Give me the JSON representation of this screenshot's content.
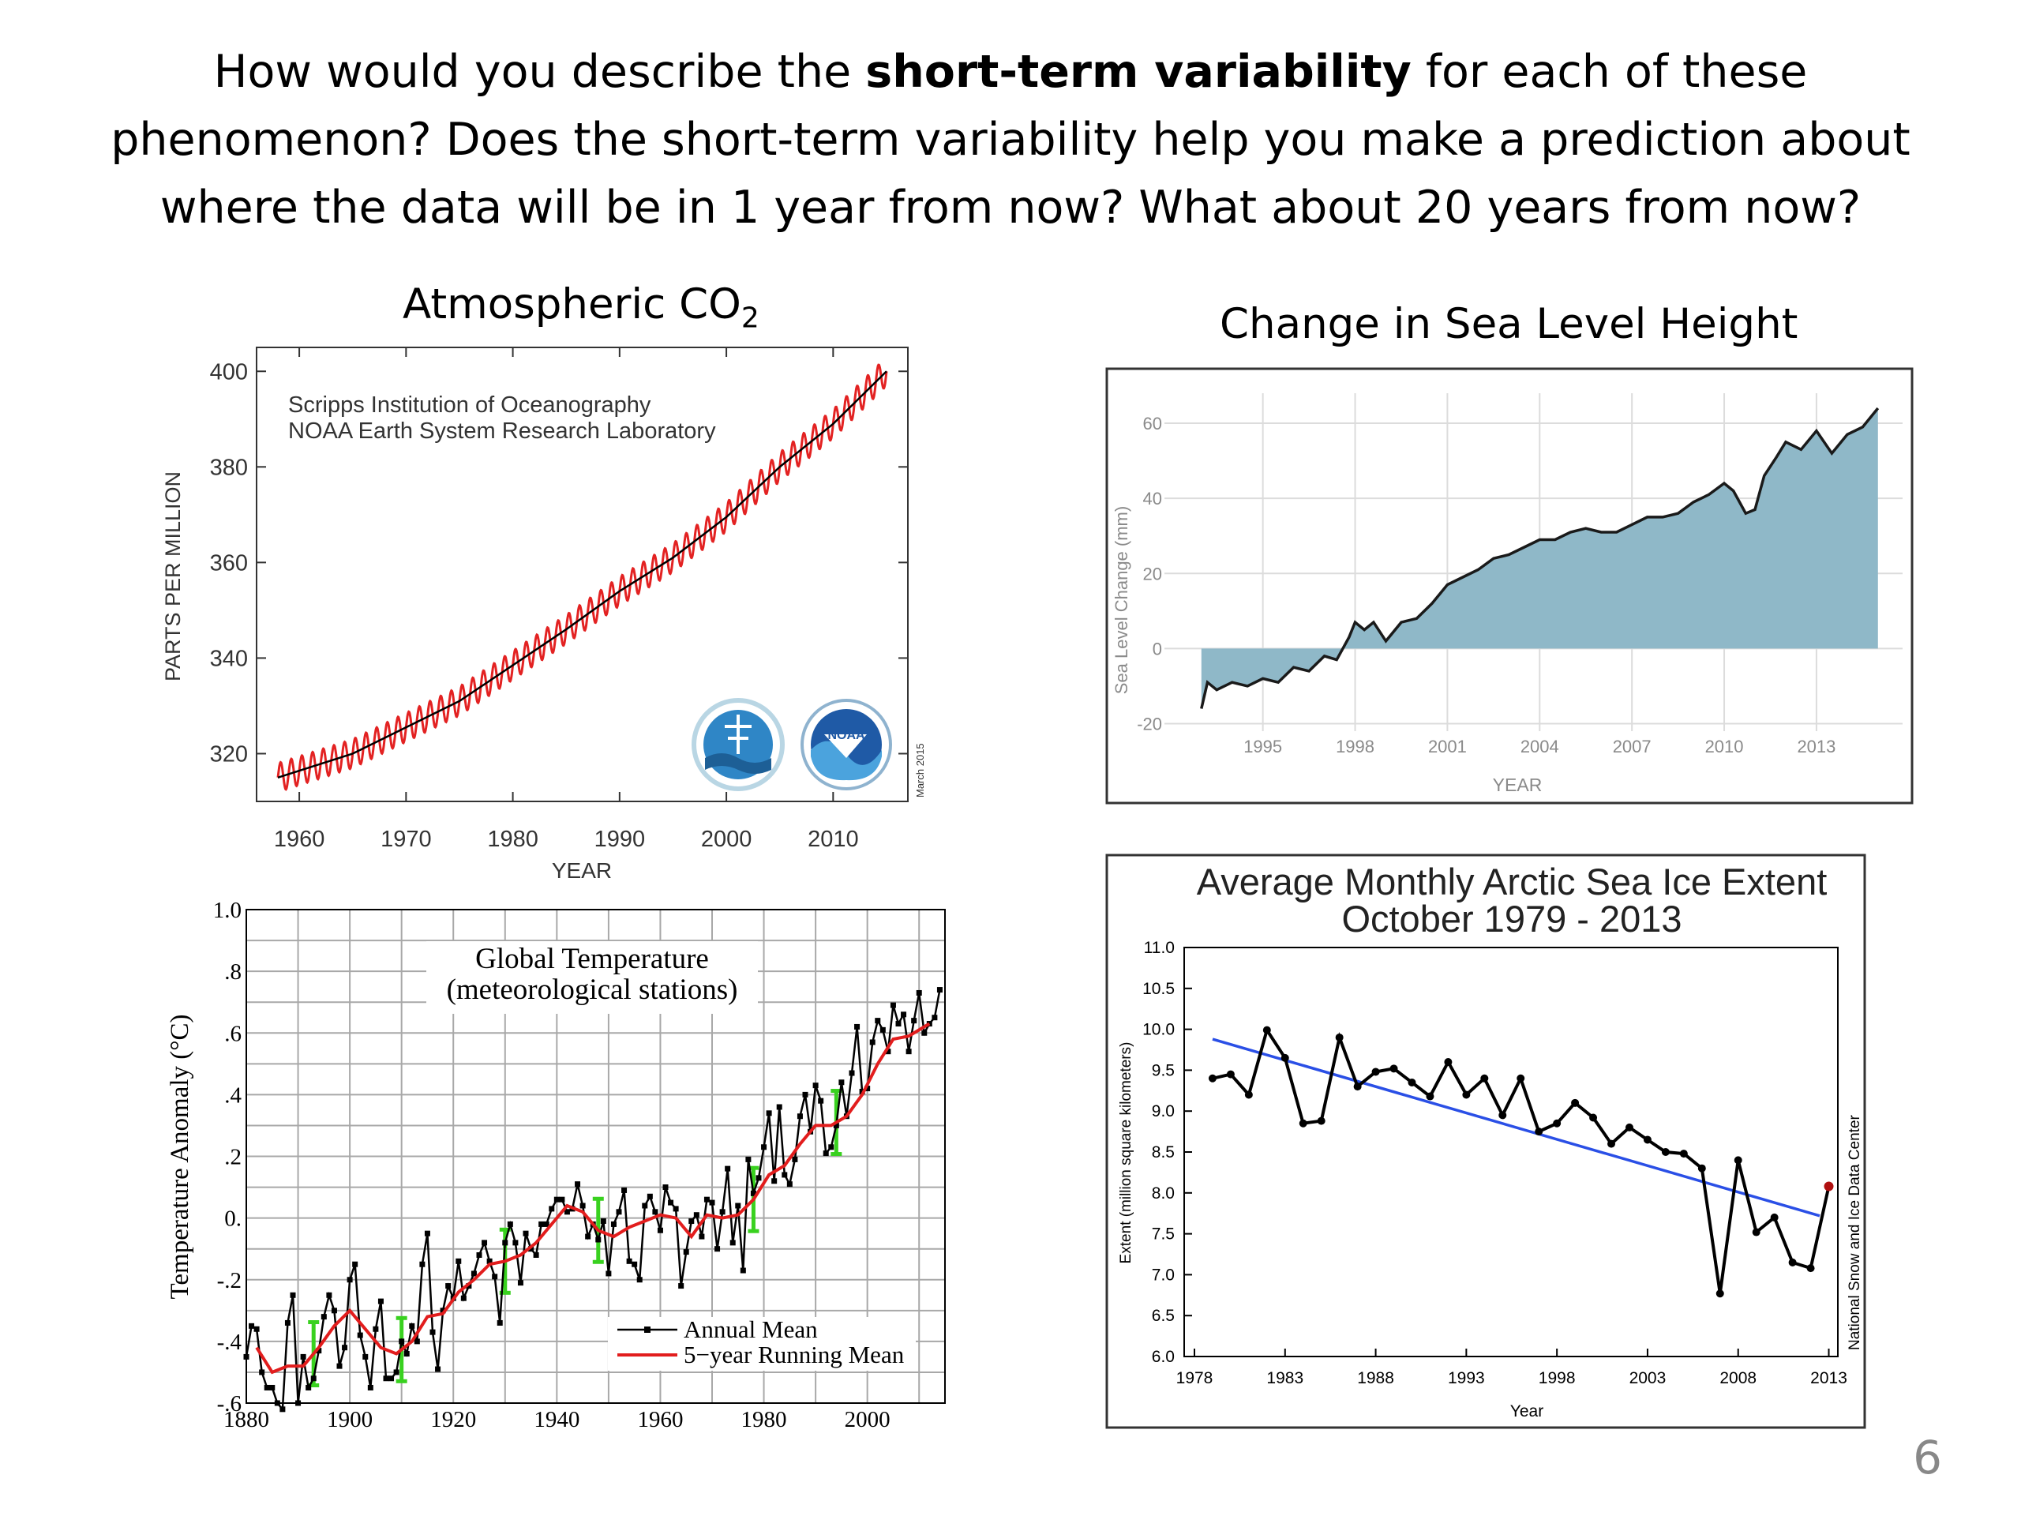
{
  "slide": {
    "question": {
      "line1_before": "How would you describe the ",
      "line1_bold": "short-term variability",
      "line1_after": " for each of these",
      "line2": "phenomenon? Does the short-term variability help you make a prediction about",
      "line3": "where the data will be in 1 year from now? What about 20 years from now?"
    },
    "page_number": "6"
  },
  "colors": {
    "co2_seasonal": "#e32222",
    "co2_trend": "#000000",
    "sea_fill": "#8fb8c8",
    "sea_line": "#1a1a1a",
    "temp_annual": "#000000",
    "temp_running": "#e21d1d",
    "temp_errorbar": "#39d11f",
    "ice_line": "#000000",
    "ice_trend": "#2a4fe6",
    "ice_last_point": "#b01010"
  },
  "chart_data": [
    {
      "id": "co2",
      "type": "line",
      "panel_title": "Atmospheric CO",
      "panel_title_sub": "2",
      "inner_text": [
        "Scripps Institution of Oceanography",
        "NOAA Earth System Research Laboratory"
      ],
      "logos": [
        {
          "icon": "scripps-seal-logo"
        },
        {
          "icon": "noaa-logo",
          "text": "NOAA"
        }
      ],
      "side_note": "March 2015",
      "xlabel": "YEAR",
      "ylabel": "PARTS PER MILLION",
      "xlim": [
        1956,
        2017
      ],
      "ylim": [
        310,
        405
      ],
      "xticks": [
        1960,
        1970,
        1980,
        1990,
        2000,
        2010
      ],
      "yticks": [
        320,
        340,
        360,
        380,
        400
      ],
      "trend": {
        "x": [
          1958,
          1965,
          1970,
          1975,
          1980,
          1985,
          1990,
          1995,
          2000,
          2005,
          2010,
          2015
        ],
        "y": [
          315,
          320,
          325.5,
          331,
          338.5,
          346,
          354,
          361,
          369.5,
          380,
          389,
          400
        ]
      },
      "seasonal_amplitude": 3
    },
    {
      "id": "sea-level",
      "type": "area",
      "panel_title": "Change in Sea Level Height",
      "xlabel": "YEAR",
      "ylabel": "Sea Level Change (mm)",
      "xlim": [
        1991.8,
        2015.8
      ],
      "ylim": [
        -22,
        68
      ],
      "xticks": [
        1995,
        1998,
        2001,
        2004,
        2007,
        2010,
        2013
      ],
      "yticks": [
        -20,
        0,
        20,
        40,
        60
      ],
      "x": [
        1993.0,
        1993.2,
        1993.5,
        1994.0,
        1994.5,
        1995.0,
        1995.5,
        1996.0,
        1996.5,
        1997.0,
        1997.4,
        1997.8,
        1998.0,
        1998.3,
        1998.6,
        1999.0,
        1999.5,
        2000.0,
        2000.5,
        2001.0,
        2001.5,
        2002.0,
        2002.5,
        2003.0,
        2003.5,
        2004.0,
        2004.5,
        2005.0,
        2005.5,
        2006.0,
        2006.5,
        2007.0,
        2007.5,
        2008.0,
        2008.5,
        2009.0,
        2009.5,
        2010.0,
        2010.3,
        2010.7,
        2011.0,
        2011.3,
        2011.7,
        2012.0,
        2012.5,
        2013.0,
        2013.5,
        2014.0,
        2014.5,
        2015.0
      ],
      "values": [
        -16,
        -9,
        -11,
        -9,
        -10,
        -8,
        -9,
        -5,
        -6,
        -2,
        -3,
        3,
        7,
        5,
        7,
        2,
        7,
        8,
        12,
        17,
        19,
        21,
        24,
        25,
        27,
        29,
        29,
        31,
        32,
        31,
        31,
        33,
        35,
        35,
        36,
        39,
        41,
        44,
        42,
        36,
        37,
        46,
        51,
        55,
        53,
        58,
        52,
        57,
        59,
        64
      ]
    },
    {
      "id": "global-temperature",
      "type": "line",
      "inner_title": [
        "Global Temperature",
        "(meteorological stations)"
      ],
      "ylabel": "Temperature Anomaly (°C)",
      "xlim": [
        1880,
        2015
      ],
      "ylim": [
        -0.6,
        1.0
      ],
      "xticks": [
        "1880",
        "1900",
        "1920",
        "1940",
        "1960",
        "1980",
        "2000"
      ],
      "yticks": [
        "-.6",
        "-.4",
        "-.2",
        "0.",
        ".2",
        ".4",
        ".6",
        ".8",
        "1.0"
      ],
      "legend": [
        {
          "label": "Annual Mean",
          "style": "line-with-square-markers"
        },
        {
          "label": "5−year Running Mean",
          "style": "line"
        }
      ],
      "legend_position": "bottom-right",
      "series": [
        {
          "name": "Annual Mean",
          "x": [
            1880,
            1881,
            1882,
            1883,
            1884,
            1885,
            1886,
            1887,
            1888,
            1889,
            1890,
            1891,
            1892,
            1893,
            1894,
            1895,
            1896,
            1897,
            1898,
            1899,
            1900,
            1901,
            1902,
            1903,
            1904,
            1905,
            1906,
            1907,
            1908,
            1909,
            1910,
            1911,
            1912,
            1913,
            1914,
            1915,
            1916,
            1917,
            1918,
            1919,
            1920,
            1921,
            1922,
            1923,
            1924,
            1925,
            1926,
            1927,
            1928,
            1929,
            1930,
            1931,
            1932,
            1933,
            1934,
            1935,
            1936,
            1937,
            1938,
            1939,
            1940,
            1941,
            1942,
            1943,
            1944,
            1945,
            1946,
            1947,
            1948,
            1949,
            1950,
            1951,
            1952,
            1953,
            1954,
            1955,
            1956,
            1957,
            1958,
            1959,
            1960,
            1961,
            1962,
            1963,
            1964,
            1965,
            1966,
            1967,
            1968,
            1969,
            1970,
            1971,
            1972,
            1973,
            1974,
            1975,
            1976,
            1977,
            1978,
            1979,
            1980,
            1981,
            1982,
            1983,
            1984,
            1985,
            1986,
            1987,
            1988,
            1989,
            1990,
            1991,
            1992,
            1993,
            1994,
            1995,
            1996,
            1997,
            1998,
            1999,
            2000,
            2001,
            2002,
            2003,
            2004,
            2005,
            2006,
            2007,
            2008,
            2009,
            2010,
            2011,
            2012,
            2013,
            2014
          ],
          "values": [
            -0.45,
            -0.35,
            -0.36,
            -0.5,
            -0.55,
            -0.55,
            -0.6,
            -0.62,
            -0.34,
            -0.25,
            -0.6,
            -0.45,
            -0.55,
            -0.52,
            -0.43,
            -0.32,
            -0.25,
            -0.3,
            -0.48,
            -0.42,
            -0.2,
            -0.15,
            -0.38,
            -0.45,
            -0.55,
            -0.36,
            -0.27,
            -0.52,
            -0.52,
            -0.5,
            -0.4,
            -0.44,
            -0.35,
            -0.4,
            -0.15,
            -0.05,
            -0.37,
            -0.49,
            -0.3,
            -0.22,
            -0.26,
            -0.14,
            -0.26,
            -0.22,
            -0.18,
            -0.12,
            -0.08,
            -0.14,
            -0.19,
            -0.34,
            -0.08,
            -0.02,
            -0.08,
            -0.21,
            -0.05,
            -0.1,
            -0.12,
            -0.02,
            -0.02,
            0.03,
            0.06,
            0.06,
            0.02,
            0.03,
            0.11,
            0.04,
            -0.06,
            -0.02,
            -0.07,
            -0.01,
            -0.18,
            -0.02,
            0.02,
            0.09,
            -0.14,
            -0.15,
            -0.2,
            0.04,
            0.07,
            0.02,
            -0.04,
            0.1,
            0.05,
            0.03,
            -0.22,
            -0.11,
            -0.01,
            0.01,
            -0.06,
            0.06,
            0.05,
            -0.1,
            0.02,
            0.16,
            -0.08,
            0.04,
            -0.17,
            0.19,
            0.08,
            0.13,
            0.23,
            0.34,
            0.12,
            0.36,
            0.14,
            0.11,
            0.19,
            0.33,
            0.4,
            0.28,
            0.43,
            0.38,
            0.21,
            0.23,
            0.3,
            0.44,
            0.33,
            0.47,
            0.62,
            0.41,
            0.42,
            0.57,
            0.64,
            0.61,
            0.54,
            0.69,
            0.63,
            0.66,
            0.54,
            0.64,
            0.73,
            0.6,
            0.63,
            0.65,
            0.74
          ]
        },
        {
          "name": "5−year Running Mean",
          "x": [
            1882,
            1885,
            1888,
            1891,
            1894,
            1897,
            1900,
            1903,
            1906,
            1909,
            1912,
            1915,
            1918,
            1921,
            1924,
            1927,
            1930,
            1933,
            1936,
            1939,
            1942,
            1945,
            1948,
            1951,
            1954,
            1957,
            1960,
            1963,
            1966,
            1969,
            1972,
            1975,
            1978,
            1981,
            1984,
            1987,
            1990,
            1993,
            1996,
            1999,
            2002,
            2005,
            2008,
            2011,
            2012
          ],
          "values": [
            -0.42,
            -0.5,
            -0.48,
            -0.48,
            -0.42,
            -0.35,
            -0.3,
            -0.36,
            -0.42,
            -0.44,
            -0.4,
            -0.32,
            -0.31,
            -0.24,
            -0.2,
            -0.15,
            -0.14,
            -0.12,
            -0.08,
            -0.02,
            0.04,
            0.02,
            -0.04,
            -0.06,
            -0.03,
            -0.01,
            0.01,
            0.0,
            -0.06,
            0.01,
            0.0,
            0.01,
            0.06,
            0.14,
            0.17,
            0.24,
            0.3,
            0.3,
            0.33,
            0.4,
            0.5,
            0.58,
            0.59,
            0.62,
            0.63
          ]
        }
      ]
    },
    {
      "id": "arctic-sea-ice",
      "type": "line",
      "title": [
        "Average Monthly Arctic Sea Ice Extent",
        "October 1979 - 2013"
      ],
      "side_note": "National Snow and Ice Data Center",
      "xlabel": "Year",
      "ylabel": "Extent (million square kilometers)",
      "xlim": [
        1978,
        2013.5
      ],
      "ylim": [
        6.0,
        11.0
      ],
      "xticks": [
        1978,
        1983,
        1988,
        1993,
        1998,
        2003,
        2008,
        2013
      ],
      "yticks": [
        "6.0",
        "6.5",
        "7.0",
        "7.5",
        "8.0",
        "8.5",
        "9.0",
        "9.5",
        "10.0",
        "10.5",
        "11.0"
      ],
      "x": [
        1979,
        1980,
        1981,
        1982,
        1983,
        1984,
        1985,
        1986,
        1987,
        1988,
        1989,
        1990,
        1991,
        1992,
        1993,
        1994,
        1995,
        1996,
        1997,
        1998,
        1999,
        2000,
        2001,
        2002,
        2003,
        2004,
        2005,
        2006,
        2007,
        2008,
        2009,
        2010,
        2011,
        2012,
        2013
      ],
      "values": [
        9.4,
        9.45,
        9.2,
        9.99,
        9.65,
        8.85,
        8.88,
        9.9,
        9.3,
        9.48,
        9.52,
        9.35,
        9.18,
        9.6,
        9.2,
        9.4,
        8.95,
        9.4,
        8.75,
        8.85,
        9.1,
        8.92,
        8.6,
        8.8,
        8.65,
        8.5,
        8.48,
        8.3,
        6.77,
        8.4,
        7.52,
        7.7,
        7.15,
        7.08,
        8.08
      ],
      "trend": {
        "x": [
          1979,
          2012.5
        ],
        "y": [
          9.88,
          7.72
        ]
      }
    }
  ]
}
